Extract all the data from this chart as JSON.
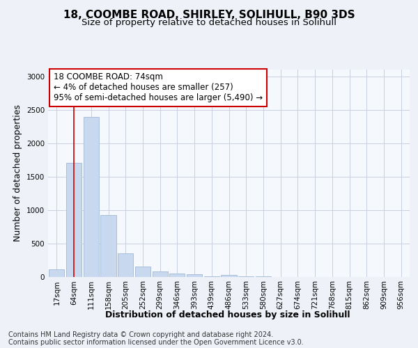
{
  "title_line1": "18, COOMBE ROAD, SHIRLEY, SOLIHULL, B90 3DS",
  "title_line2": "Size of property relative to detached houses in Solihull",
  "xlabel": "Distribution of detached houses by size in Solihull",
  "ylabel": "Number of detached properties",
  "categories": [
    "17sqm",
    "64sqm",
    "111sqm",
    "158sqm",
    "205sqm",
    "252sqm",
    "299sqm",
    "346sqm",
    "393sqm",
    "439sqm",
    "486sqm",
    "533sqm",
    "580sqm",
    "627sqm",
    "674sqm",
    "721sqm",
    "768sqm",
    "815sqm",
    "862sqm",
    "909sqm",
    "956sqm"
  ],
  "values": [
    110,
    1700,
    2390,
    920,
    350,
    150,
    75,
    50,
    35,
    5,
    30,
    5,
    5,
    0,
    0,
    0,
    0,
    0,
    0,
    0,
    0
  ],
  "bar_color": "#c8d8ef",
  "bar_edge_color": "#a0b8d8",
  "annotation_box_text": "18 COOMBE ROAD: 74sqm\n← 4% of detached houses are smaller (257)\n95% of semi-detached houses are larger (5,490) →",
  "red_line_x": 1,
  "ylim": [
    0,
    3100
  ],
  "yticks": [
    0,
    500,
    1000,
    1500,
    2000,
    2500,
    3000
  ],
  "footer_line1": "Contains HM Land Registry data © Crown copyright and database right 2024.",
  "footer_line2": "Contains public sector information licensed under the Open Government Licence v3.0.",
  "background_color": "#eef2f8",
  "plot_background": "#f5f8fd",
  "grid_color": "#c8cfe0",
  "title_fontsize": 11,
  "subtitle_fontsize": 9.5,
  "tick_fontsize": 7.5,
  "ylabel_fontsize": 9,
  "xlabel_fontsize": 9,
  "footer_fontsize": 7
}
